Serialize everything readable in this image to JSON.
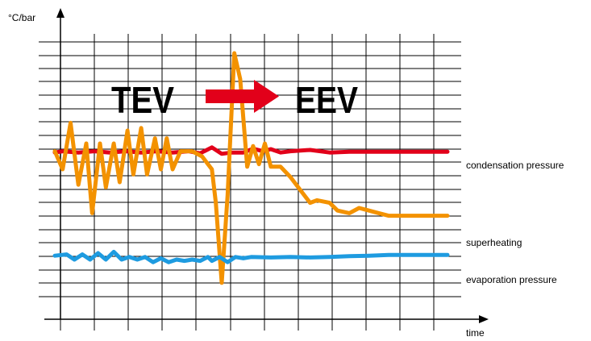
{
  "chart_data": {
    "type": "line",
    "ylabel": "°C/bar",
    "xlabel": "time",
    "grid": true,
    "annotations": {
      "before": "TEV",
      "after": "EEV"
    },
    "x_range": [
      0,
      1
    ],
    "y_range": [
      0,
      1
    ],
    "series": [
      {
        "name": "condensation pressure",
        "color": "#e2001a",
        "points": [
          [
            0,
            0.565
          ],
          [
            0.02,
            0.57
          ],
          [
            0.06,
            0.565
          ],
          [
            0.1,
            0.57
          ],
          [
            0.14,
            0.565
          ],
          [
            0.18,
            0.57
          ],
          [
            0.22,
            0.565
          ],
          [
            0.26,
            0.57
          ],
          [
            0.3,
            0.565
          ],
          [
            0.34,
            0.57
          ],
          [
            0.37,
            0.562
          ],
          [
            0.4,
            0.585
          ],
          [
            0.425,
            0.56
          ],
          [
            0.45,
            0.565
          ],
          [
            0.48,
            0.565
          ],
          [
            0.505,
            0.58
          ],
          [
            0.53,
            0.57
          ],
          [
            0.55,
            0.578
          ],
          [
            0.575,
            0.565
          ],
          [
            0.6,
            0.57
          ],
          [
            0.65,
            0.575
          ],
          [
            0.7,
            0.565
          ],
          [
            0.75,
            0.568
          ],
          [
            0.8,
            0.568
          ],
          [
            0.9,
            0.568
          ],
          [
            1.0,
            0.568
          ]
        ]
      },
      {
        "name": "superheating",
        "color": "#f39200",
        "points": [
          [
            0,
            0.57
          ],
          [
            0.02,
            0.5
          ],
          [
            0.04,
            0.68
          ],
          [
            0.06,
            0.44
          ],
          [
            0.08,
            0.6
          ],
          [
            0.095,
            0.33
          ],
          [
            0.115,
            0.6
          ],
          [
            0.13,
            0.43
          ],
          [
            0.15,
            0.6
          ],
          [
            0.165,
            0.45
          ],
          [
            0.185,
            0.65
          ],
          [
            0.2,
            0.48
          ],
          [
            0.22,
            0.66
          ],
          [
            0.235,
            0.48
          ],
          [
            0.255,
            0.62
          ],
          [
            0.27,
            0.5
          ],
          [
            0.285,
            0.62
          ],
          [
            0.3,
            0.5
          ],
          [
            0.32,
            0.57
          ],
          [
            0.35,
            0.57
          ],
          [
            0.375,
            0.55
          ],
          [
            0.4,
            0.5
          ],
          [
            0.41,
            0.37
          ],
          [
            0.425,
            0.06
          ],
          [
            0.44,
            0.4
          ],
          [
            0.457,
            0.95
          ],
          [
            0.472,
            0.85
          ],
          [
            0.49,
            0.51
          ],
          [
            0.505,
            0.59
          ],
          [
            0.52,
            0.52
          ],
          [
            0.535,
            0.6
          ],
          [
            0.55,
            0.51
          ],
          [
            0.575,
            0.51
          ],
          [
            0.6,
            0.47
          ],
          [
            0.625,
            0.42
          ],
          [
            0.65,
            0.37
          ],
          [
            0.668,
            0.38
          ],
          [
            0.7,
            0.37
          ],
          [
            0.72,
            0.34
          ],
          [
            0.75,
            0.33
          ],
          [
            0.775,
            0.35
          ],
          [
            0.8,
            0.34
          ],
          [
            0.825,
            0.33
          ],
          [
            0.85,
            0.32
          ],
          [
            0.9,
            0.32
          ],
          [
            1.0,
            0.32
          ]
        ]
      },
      {
        "name": "evaporation pressure",
        "color": "#1e9be0",
        "points": [
          [
            0,
            0.165
          ],
          [
            0.03,
            0.17
          ],
          [
            0.05,
            0.15
          ],
          [
            0.07,
            0.17
          ],
          [
            0.09,
            0.15
          ],
          [
            0.11,
            0.175
          ],
          [
            0.13,
            0.15
          ],
          [
            0.15,
            0.18
          ],
          [
            0.17,
            0.15
          ],
          [
            0.19,
            0.16
          ],
          [
            0.21,
            0.15
          ],
          [
            0.23,
            0.16
          ],
          [
            0.25,
            0.14
          ],
          [
            0.27,
            0.155
          ],
          [
            0.29,
            0.14
          ],
          [
            0.31,
            0.15
          ],
          [
            0.33,
            0.145
          ],
          [
            0.35,
            0.15
          ],
          [
            0.37,
            0.145
          ],
          [
            0.39,
            0.16
          ],
          [
            0.4,
            0.145
          ],
          [
            0.42,
            0.16
          ],
          [
            0.44,
            0.14
          ],
          [
            0.46,
            0.16
          ],
          [
            0.48,
            0.155
          ],
          [
            0.5,
            0.16
          ],
          [
            0.55,
            0.158
          ],
          [
            0.6,
            0.16
          ],
          [
            0.65,
            0.158
          ],
          [
            0.7,
            0.16
          ],
          [
            0.75,
            0.163
          ],
          [
            0.8,
            0.165
          ],
          [
            0.85,
            0.168
          ],
          [
            0.9,
            0.168
          ],
          [
            1.0,
            0.168
          ]
        ]
      }
    ],
    "arrow_color": "#e2001a"
  }
}
